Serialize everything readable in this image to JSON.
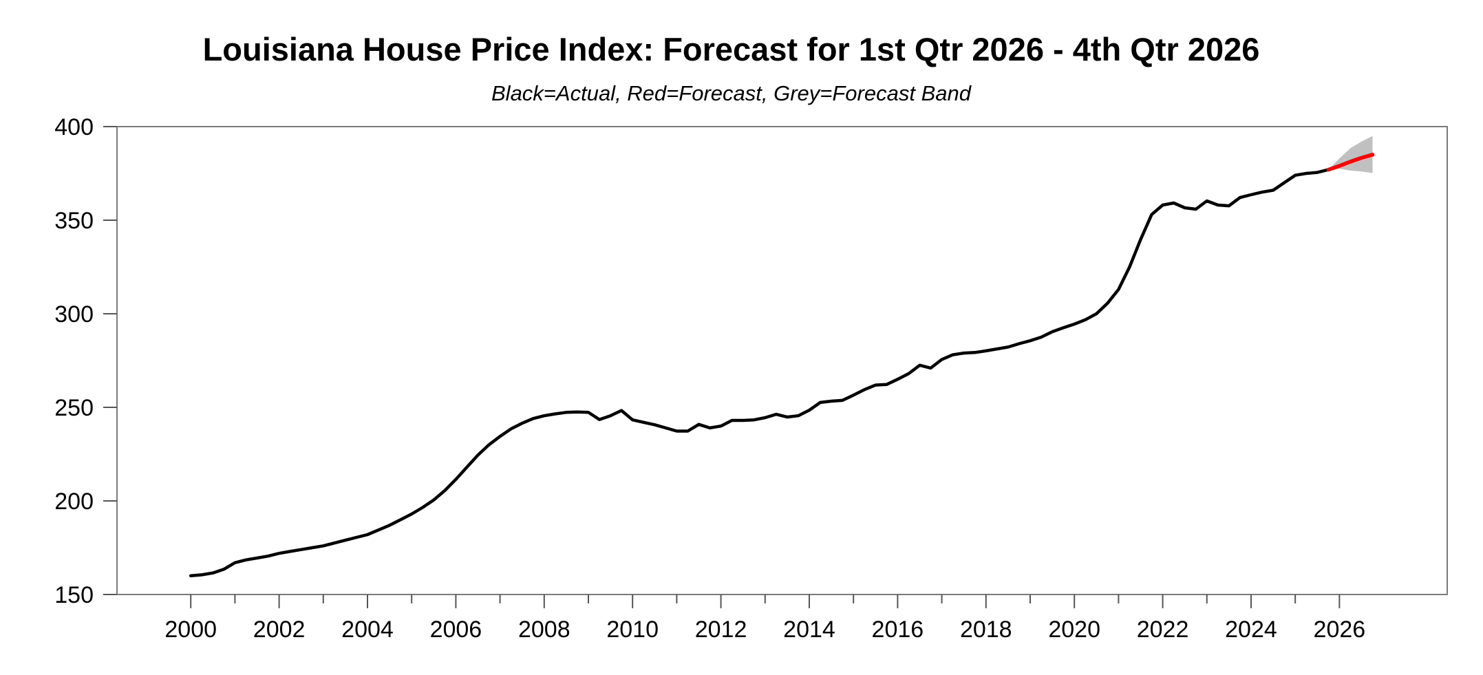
{
  "header": {
    "title": "Louisiana House Price Index: Forecast for 1st Qtr 2026 - 4th Qtr 2026",
    "subtitle": "Black=Actual, Red=Forecast, Grey=Forecast Band"
  },
  "colors": {
    "actual": "#000000",
    "forecast": "#ff0000",
    "band": "#c0c0c0",
    "frame": "#7a7a7a",
    "tick": "#555555",
    "label": "#000000"
  },
  "chart_data": {
    "type": "line",
    "title": "Louisiana House Price Index: Forecast for 1st Qtr 2026 - 4th Qtr 2026",
    "subtitle": "Black=Actual, Red=Forecast, Grey=Forecast Band",
    "xlabel": "",
    "ylabel": "",
    "xlim": [
      1998.33,
      2028.44
    ],
    "ylim": [
      150,
      400
    ],
    "yticks": [
      150,
      200,
      250,
      300,
      350,
      400
    ],
    "x_major_ticks": [
      2000,
      2002,
      2004,
      2006,
      2008,
      2010,
      2012,
      2014,
      2016,
      2018,
      2020,
      2022,
      2024,
      2026
    ],
    "x_minor_ticks": [
      2001,
      2003,
      2005,
      2007,
      2009,
      2011,
      2013,
      2015,
      2017,
      2019,
      2021,
      2023,
      2025
    ],
    "grid": false,
    "legend_position": "none",
    "frequency": "quarterly",
    "series": [
      {
        "name": "Actual",
        "color": "#000000",
        "start": 2000.0,
        "step": 0.25,
        "values": [
          160,
          160.5,
          161.5,
          163.5,
          167,
          168.5,
          169.5,
          170.5,
          172,
          173,
          174,
          175,
          176,
          177.5,
          179,
          180.5,
          182,
          184.5,
          187,
          190,
          193,
          196.5,
          200.5,
          205.5,
          211.5,
          218,
          224.5,
          230,
          234.5,
          238.5,
          241.5,
          244,
          245.5,
          246.5,
          247.3,
          247.5,
          247.3,
          243.5,
          245.5,
          248.3,
          243.3,
          242,
          240.7,
          239,
          237.3,
          237.3,
          240.9,
          239,
          240,
          243,
          243,
          243.3,
          244.5,
          246.3,
          244.8,
          245.5,
          248.5,
          252.6,
          253.3,
          253.7,
          256.5,
          259.5,
          261.9,
          262.2,
          265,
          268,
          272.5,
          271,
          275.6,
          278.1,
          279,
          279.3,
          280.2,
          281.2,
          282.2,
          284,
          285.6,
          287.5,
          290.4,
          292.5,
          294.5,
          296.8,
          300,
          305.6,
          313,
          325,
          339.7,
          353,
          358.1,
          359.2,
          356.6,
          355.9,
          360.3,
          358.1,
          357.7,
          362.1,
          363.6,
          365,
          366,
          370,
          374,
          375,
          375.5,
          377
        ]
      },
      {
        "name": "Forecast",
        "color": "#ff0000",
        "start": 2025.75,
        "step": 0.25,
        "values": [
          377,
          379,
          381.3,
          383.3,
          385
        ]
      },
      {
        "name": "Forecast Band Upper",
        "color": "#c0c0c0",
        "start": 2025.75,
        "step": 0.25,
        "values": [
          377,
          383,
          388.5,
          392,
          395
        ]
      },
      {
        "name": "Forecast Band Lower",
        "color": "#c0c0c0",
        "start": 2025.75,
        "step": 0.25,
        "values": [
          377,
          377.5,
          376.5,
          376,
          375.2
        ]
      }
    ]
  }
}
